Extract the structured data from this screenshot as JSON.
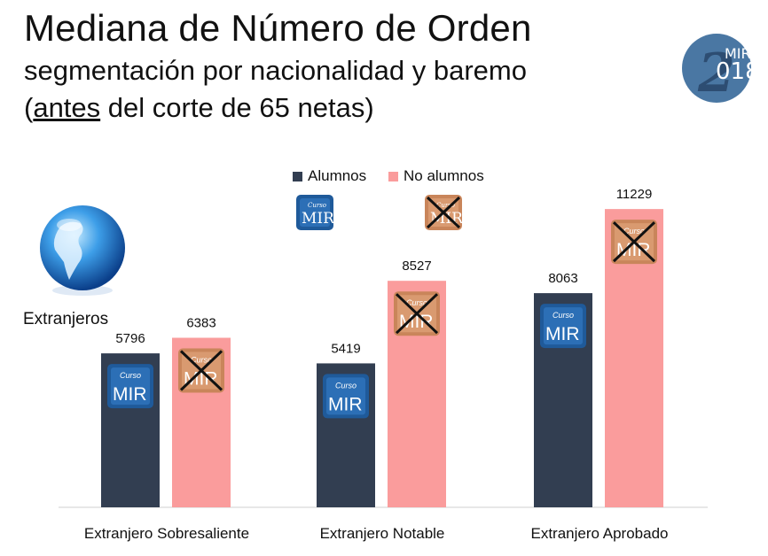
{
  "header": {
    "title": "Mediana de Número de Orden",
    "subtitle_line1": "segmentación por nacionalidad y baremo",
    "subtitle_line2_before": "(",
    "subtitle_line2_underlined": "antes",
    "subtitle_line2_after": " del corte de 65 netas)"
  },
  "badge": {
    "big_digit": "2",
    "top_text": "MIR",
    "bottom_text": "018"
  },
  "logo": {
    "small_text": "Curso",
    "main_text": "MIR"
  },
  "side_label": "Extranjeros",
  "colors": {
    "alumnos": "#323e51",
    "no_alumnos": "#fa9c9c",
    "badge": "#4a77a3"
  },
  "chart_data": {
    "type": "bar",
    "title": "",
    "categories": [
      "Extranjero Sobresaliente",
      "Extranjero Notable",
      "Extranjero Aprobado"
    ],
    "series": [
      {
        "name": "Alumnos",
        "values": [
          5796,
          5419,
          8063
        ]
      },
      {
        "name": "No alumnos",
        "values": [
          6383,
          8527,
          11229
        ]
      }
    ],
    "legend_position": "top",
    "ylim": [
      0,
      12000
    ],
    "grid": false,
    "data_labels": true
  }
}
